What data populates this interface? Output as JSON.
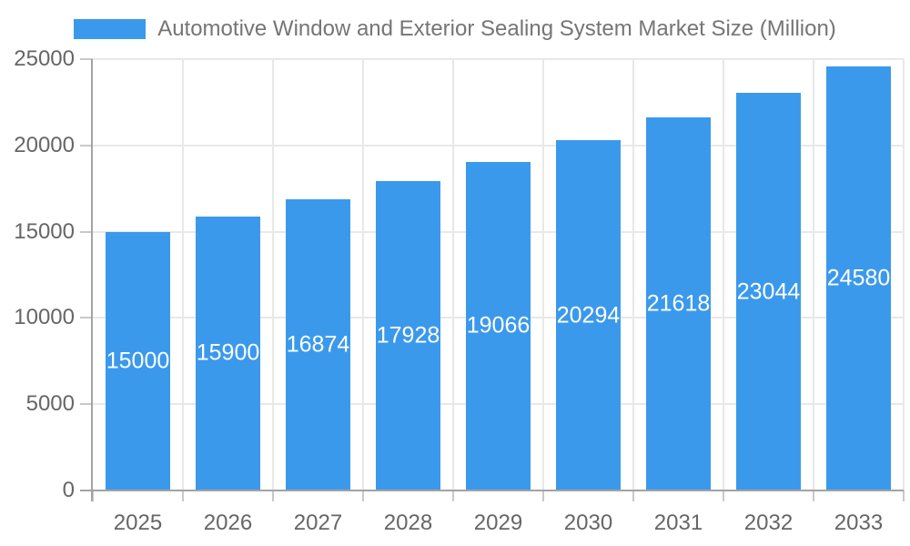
{
  "legend": {
    "label": "Automotive Window and Exterior Sealing System Market Size (Million)"
  },
  "chart_data": {
    "type": "bar",
    "title": "Automotive Window and Exterior Sealing System Market Size (Million)",
    "categories": [
      "2025",
      "2026",
      "2027",
      "2028",
      "2029",
      "2030",
      "2031",
      "2032",
      "2033"
    ],
    "values": [
      15000,
      15900,
      16874,
      17928,
      19066,
      20294,
      21618,
      23044,
      24580
    ],
    "xlabel": "",
    "ylabel": "",
    "ylim": [
      0,
      25000
    ],
    "yticks": [
      0,
      5000,
      10000,
      15000,
      20000,
      25000
    ],
    "grid": true,
    "legend_position": "top",
    "bar_color": "#3B99EC",
    "value_label_color": "#FFFFFF",
    "gridline_color": "#E8E8E8",
    "axis_line_color": "#A3A3A3",
    "tick_label_color": "#666666",
    "title_color": "#757575"
  }
}
